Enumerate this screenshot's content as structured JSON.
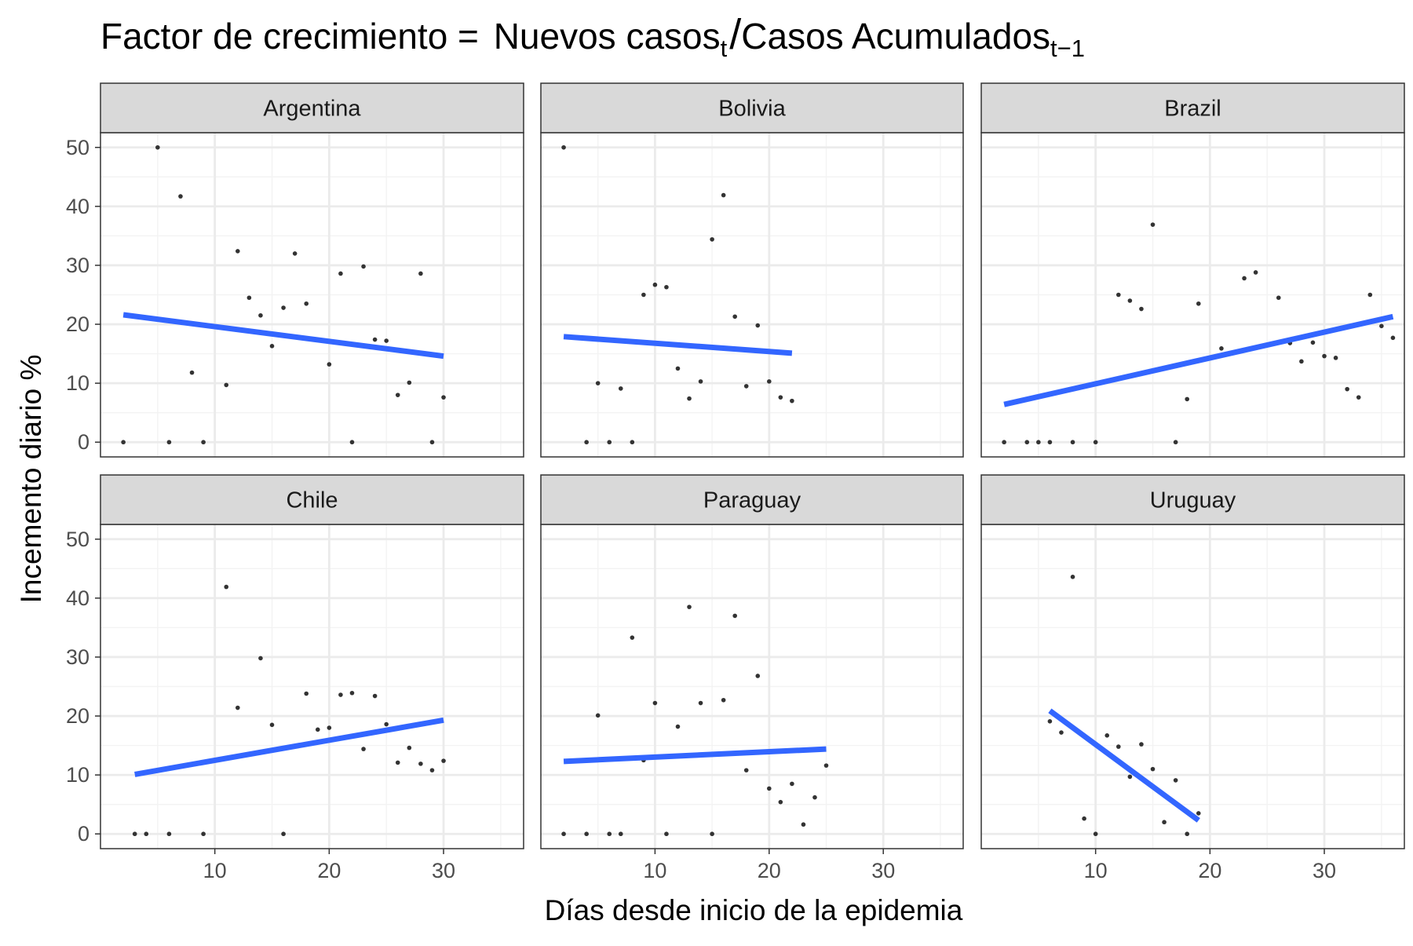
{
  "chart_data": {
    "type": "scatter",
    "title": {
      "prefix": "Factor de crecimiento = ",
      "numerator": "Nuevos casos",
      "numerator_sub": "t",
      "slash": "/",
      "denominator": "Casos Acumulados",
      "denominator_sub": "t−1"
    },
    "xlabel": "Días desde inicio de la epidemia",
    "ylabel": "Incemento diario %",
    "xlim": [
      0,
      37
    ],
    "ylim": [
      -2.5,
      52.5
    ],
    "x_ticks": [
      10,
      20,
      30
    ],
    "x_tick_labels": [
      "10",
      "20",
      "30"
    ],
    "y_ticks": [
      0,
      10,
      20,
      30,
      40,
      50
    ],
    "y_tick_labels": [
      "0",
      "10",
      "20",
      "30",
      "40",
      "50"
    ],
    "grid": true,
    "point_color": "#333333",
    "line_color": "#3366FF",
    "strip_color": "#D9D9D9",
    "panels": [
      {
        "name": "Argentina",
        "points": [
          [
            2,
            0
          ],
          [
            5,
            50
          ],
          [
            6,
            0
          ],
          [
            7,
            41.7
          ],
          [
            8,
            11.8
          ],
          [
            9,
            0
          ],
          [
            11,
            9.7
          ],
          [
            12,
            32.4
          ],
          [
            13,
            24.5
          ],
          [
            14,
            21.5
          ],
          [
            15,
            16.3
          ],
          [
            16,
            22.8
          ],
          [
            17,
            32
          ],
          [
            18,
            23.5
          ],
          [
            20,
            13.2
          ],
          [
            21,
            28.6
          ],
          [
            22,
            0
          ],
          [
            23,
            29.8
          ],
          [
            24,
            17.4
          ],
          [
            25,
            17.2
          ],
          [
            26,
            8
          ],
          [
            27,
            10.1
          ],
          [
            28,
            28.6
          ],
          [
            29,
            0
          ],
          [
            30,
            7.6
          ]
        ],
        "fit": [
          [
            2,
            21.6
          ],
          [
            30,
            14.6
          ]
        ]
      },
      {
        "name": "Bolivia",
        "points": [
          [
            2,
            50
          ],
          [
            4,
            0
          ],
          [
            5,
            10
          ],
          [
            6,
            0
          ],
          [
            7,
            9.1
          ],
          [
            8,
            0
          ],
          [
            9,
            25
          ],
          [
            10,
            26.7
          ],
          [
            11,
            26.3
          ],
          [
            12,
            12.5
          ],
          [
            13,
            7.4
          ],
          [
            14,
            10.3
          ],
          [
            15,
            34.4
          ],
          [
            16,
            41.9
          ],
          [
            17,
            21.3
          ],
          [
            18,
            9.5
          ],
          [
            19,
            19.8
          ],
          [
            20,
            10.3
          ],
          [
            21,
            7.6
          ],
          [
            22,
            7
          ]
        ],
        "fit": [
          [
            2,
            17.9
          ],
          [
            22,
            15.1
          ]
        ]
      },
      {
        "name": "Brazil",
        "points": [
          [
            2,
            0
          ],
          [
            4,
            0
          ],
          [
            5,
            0
          ],
          [
            6,
            0
          ],
          [
            8,
            0
          ],
          [
            10,
            0
          ],
          [
            12,
            25
          ],
          [
            13,
            24
          ],
          [
            14,
            22.6
          ],
          [
            15,
            36.9
          ],
          [
            17,
            0
          ],
          [
            18,
            7.3
          ],
          [
            19,
            23.5
          ],
          [
            21,
            15.9
          ],
          [
            23,
            27.8
          ],
          [
            24,
            28.8
          ],
          [
            26,
            24.5
          ],
          [
            27,
            16.8
          ],
          [
            28,
            13.7
          ],
          [
            29,
            16.9
          ],
          [
            30,
            14.6
          ],
          [
            31,
            14.3
          ],
          [
            32,
            9
          ],
          [
            33,
            7.6
          ],
          [
            34,
            25
          ],
          [
            35,
            19.7
          ],
          [
            36,
            17.7
          ]
        ],
        "fit": [
          [
            2,
            6.4
          ],
          [
            36,
            21.3
          ]
        ]
      },
      {
        "name": "Chile",
        "points": [
          [
            3,
            0
          ],
          [
            4,
            0
          ],
          [
            6,
            0
          ],
          [
            9,
            0
          ],
          [
            11,
            41.9
          ],
          [
            12,
            21.4
          ],
          [
            14,
            29.8
          ],
          [
            15,
            18.5
          ],
          [
            16,
            0
          ],
          [
            18,
            23.8
          ],
          [
            19,
            17.7
          ],
          [
            20,
            18
          ],
          [
            21,
            23.6
          ],
          [
            22,
            23.9
          ],
          [
            23,
            14.4
          ],
          [
            24,
            23.4
          ],
          [
            25,
            18.6
          ],
          [
            26,
            12.1
          ],
          [
            27,
            14.6
          ],
          [
            28,
            11.9
          ],
          [
            29,
            10.8
          ],
          [
            30,
            12.4
          ]
        ],
        "fit": [
          [
            3,
            10.1
          ],
          [
            30,
            19.3
          ]
        ]
      },
      {
        "name": "Paraguay",
        "points": [
          [
            2,
            0
          ],
          [
            4,
            0
          ],
          [
            5,
            20.1
          ],
          [
            6,
            0
          ],
          [
            7,
            0
          ],
          [
            8,
            33.3
          ],
          [
            9,
            12.5
          ],
          [
            10,
            22.2
          ],
          [
            11,
            0
          ],
          [
            12,
            18.2
          ],
          [
            13,
            38.5
          ],
          [
            14,
            22.2
          ],
          [
            15,
            0
          ],
          [
            16,
            22.7
          ],
          [
            17,
            37
          ],
          [
            18,
            10.8
          ],
          [
            19,
            26.8
          ],
          [
            20,
            7.7
          ],
          [
            21,
            5.4
          ],
          [
            22,
            8.5
          ],
          [
            23,
            1.6
          ],
          [
            24,
            6.2
          ],
          [
            25,
            11.6
          ]
        ],
        "fit": [
          [
            2,
            12.3
          ],
          [
            25,
            14.4
          ]
        ]
      },
      {
        "name": "Uruguay",
        "points": [
          [
            6,
            19.1
          ],
          [
            7,
            17.2
          ],
          [
            8,
            43.6
          ],
          [
            9,
            2.6
          ],
          [
            10,
            0
          ],
          [
            11,
            16.7
          ],
          [
            12,
            14.8
          ],
          [
            13,
            9.7
          ],
          [
            14,
            15.2
          ],
          [
            15,
            11
          ],
          [
            16,
            2
          ],
          [
            17,
            9.1
          ],
          [
            18,
            0
          ],
          [
            19,
            3.5
          ]
        ],
        "fit": [
          [
            6,
            20.9
          ],
          [
            19,
            2.3
          ]
        ]
      }
    ]
  }
}
